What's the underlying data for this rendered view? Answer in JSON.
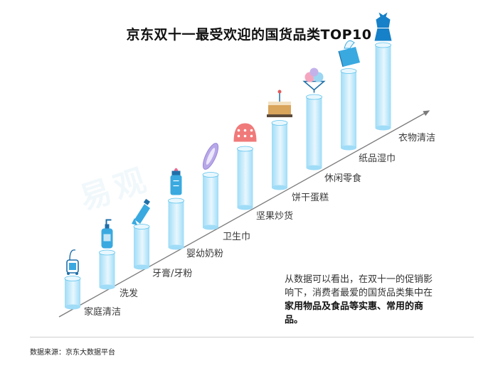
{
  "title": "京东双十一最受欢迎的国货品类TOP10",
  "chart_data": {
    "type": "bar",
    "title": "京东双十一最受欢迎的国货品类TOP10",
    "categories": [
      "家庭清洁",
      "洗发",
      "牙膏/牙粉",
      "婴幼奶粉",
      "卫生巾",
      "坚果炒货",
      "饼干蛋糕",
      "休闲零食",
      "纸品湿巾",
      "衣物清洁"
    ],
    "rank": [
      10,
      9,
      8,
      7,
      6,
      5,
      4,
      3,
      2,
      1
    ],
    "icons": [
      "vacuum-icon",
      "shampoo-bottle-icon",
      "toothpaste-icon",
      "baby-bottle-icon",
      "sanitary-pad-icon",
      "nut-snack-icon",
      "cake-icon",
      "ice-cream-icon",
      "tissue-box-icon",
      "clothing-icon"
    ],
    "colors": {
      "bar_top": "#e8f7fe",
      "bar_body": "#9fdcf7",
      "bar_edge": "#5bc2ec",
      "arrow": "#7a7a7a"
    }
  },
  "note": {
    "line1": "从数据可以看出，在双十一的促销影",
    "line2": "响下，消费者最爱的国货品类集中在",
    "bold1": "家用物品及食品等实惠、常用的商",
    "bold2": "品。"
  },
  "watermark": "易观",
  "source": "数据来源：京东大数据平台"
}
